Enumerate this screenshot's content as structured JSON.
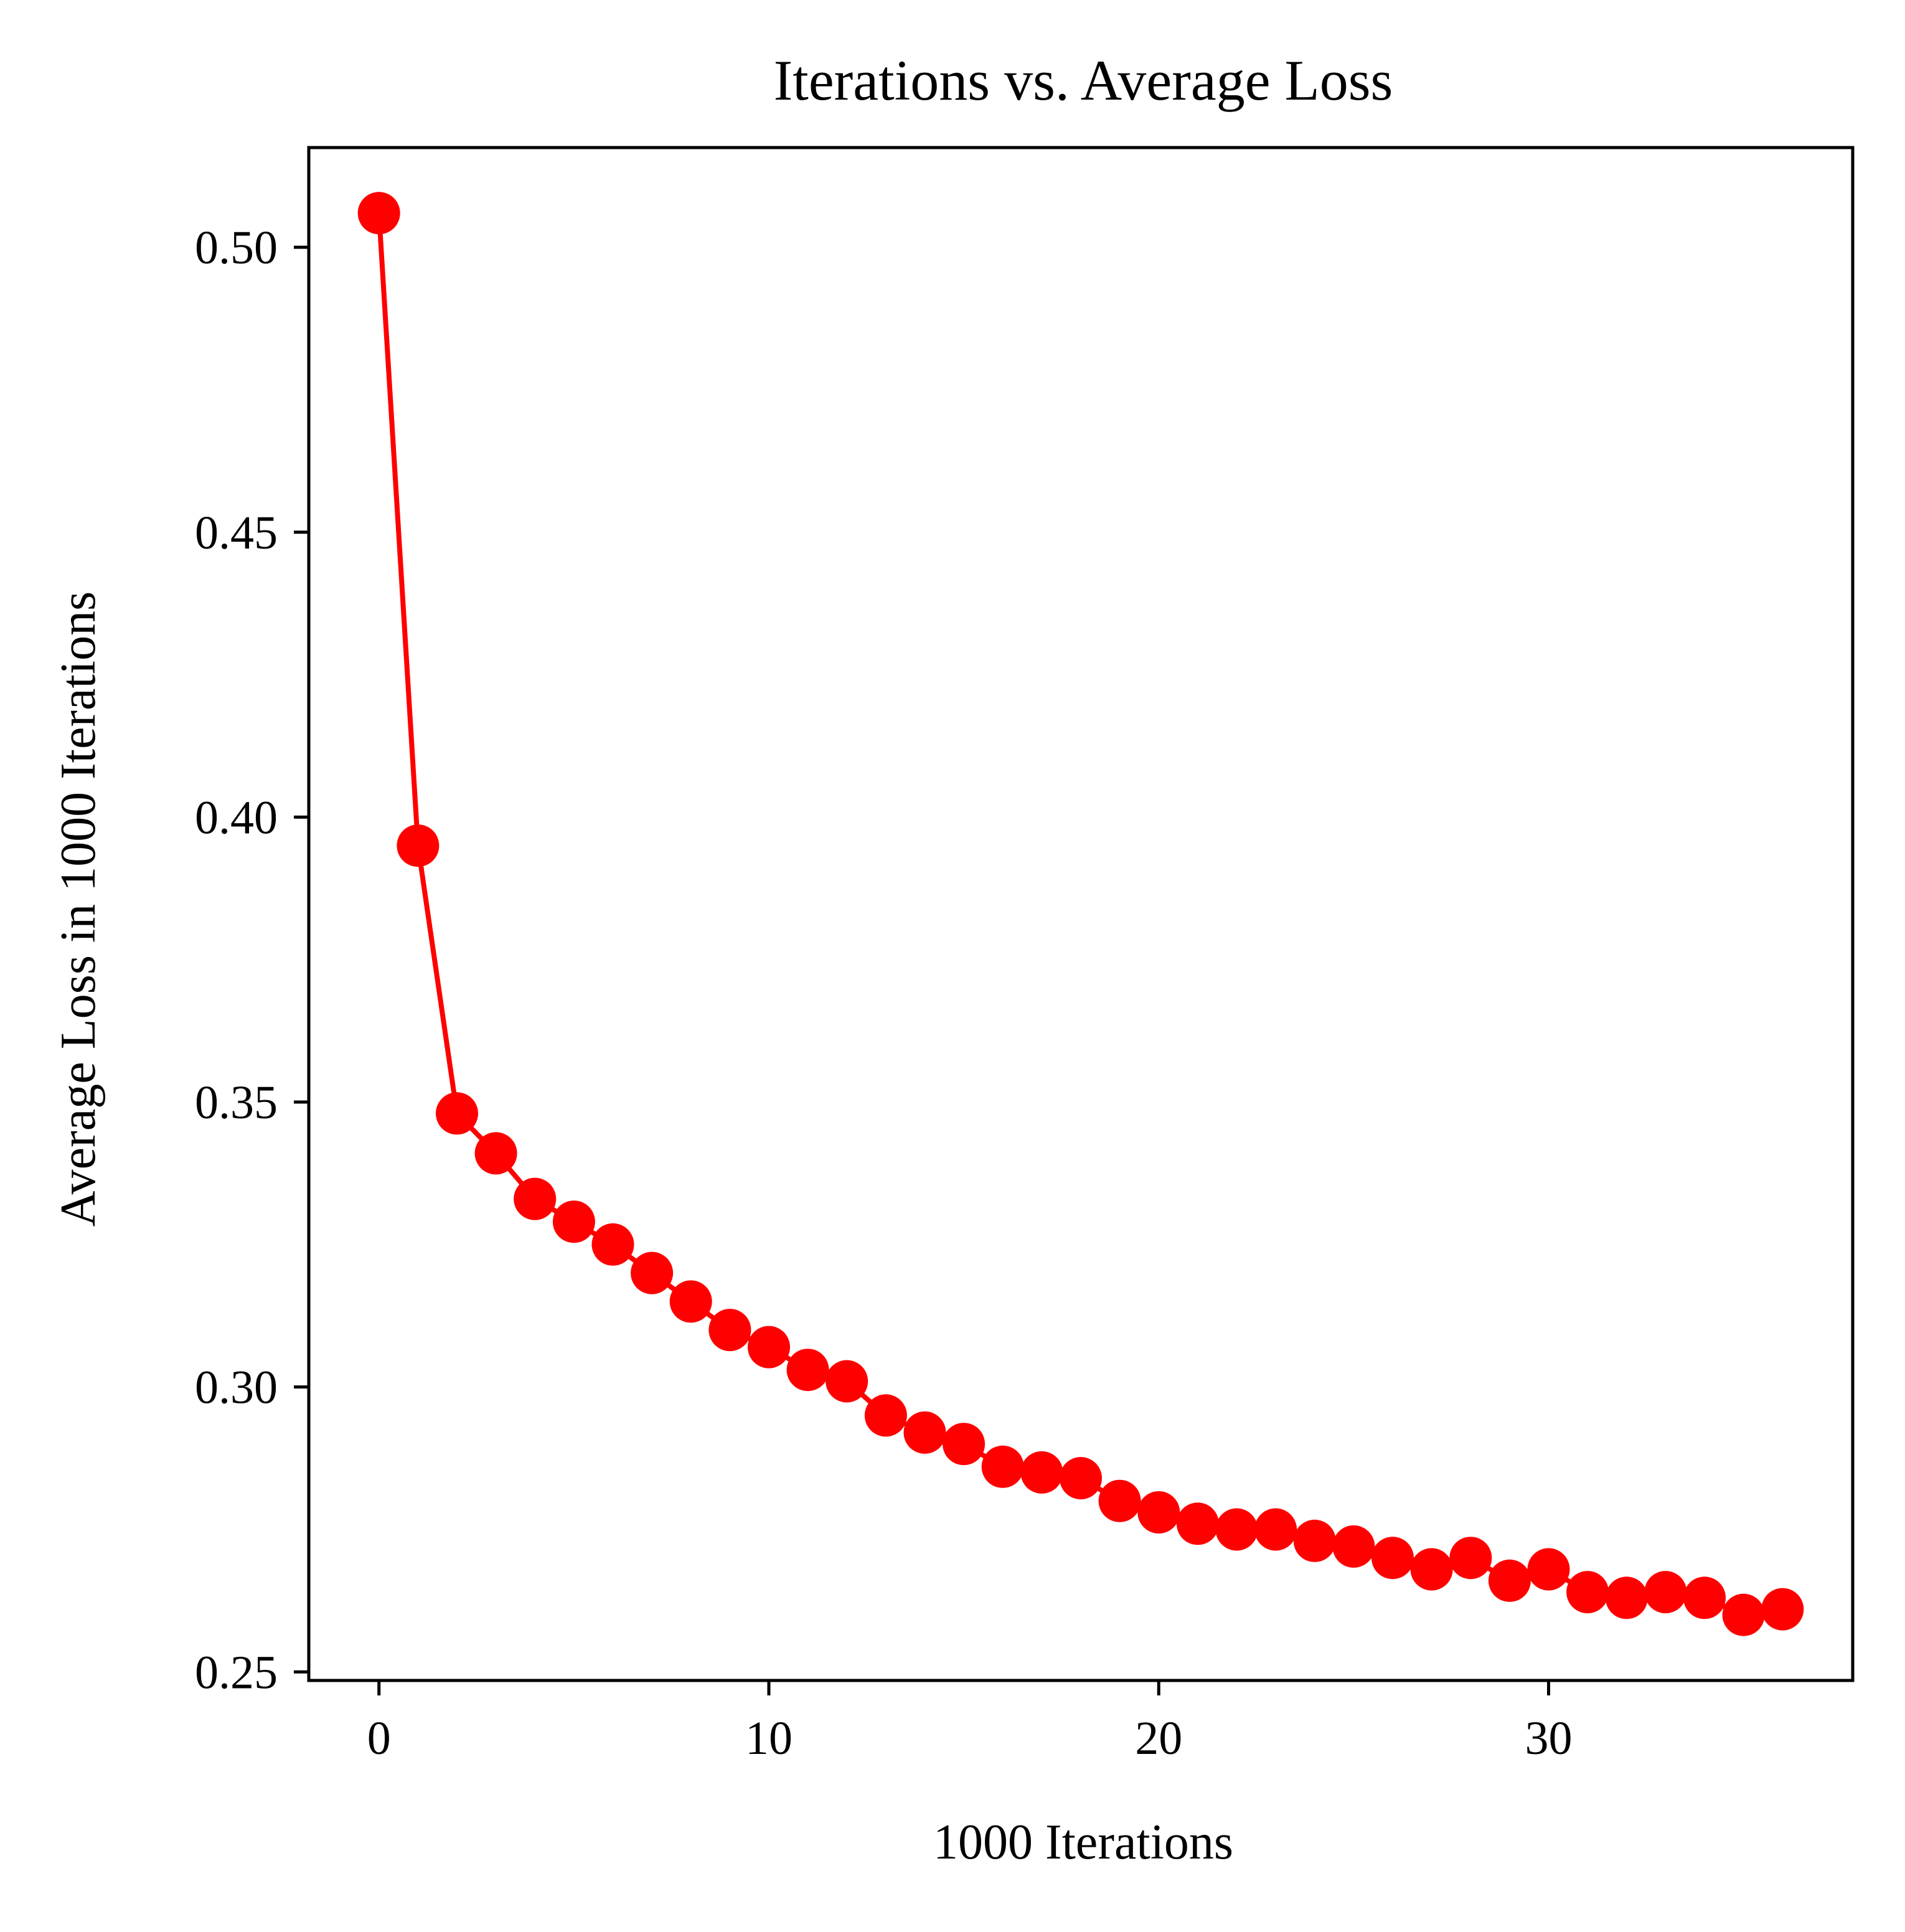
{
  "chart_data": {
    "type": "line",
    "title": "Iterations vs. Average Loss",
    "xlabel": "1000 Iterations",
    "ylabel": "Average Loss in 1000 Iterations",
    "xlim": [
      -1.8,
      37.8
    ],
    "ylim": [
      0.2485,
      0.5175
    ],
    "xticks": [
      0,
      10,
      20,
      30
    ],
    "xtick_labels": [
      "0",
      "10",
      "20",
      "30"
    ],
    "yticks": [
      0.25,
      0.3,
      0.35,
      0.4,
      0.45,
      0.5
    ],
    "ytick_labels": [
      "0.25",
      "0.30",
      "0.35",
      "0.40",
      "0.45",
      "0.50"
    ],
    "grid": false,
    "series": [
      {
        "color": "#ff0000",
        "marker": "circle",
        "x": [
          0,
          1,
          2,
          3,
          4,
          5,
          6,
          7,
          8,
          9,
          10,
          11,
          12,
          13,
          14,
          15,
          16,
          17,
          18,
          19,
          20,
          21,
          22,
          23,
          24,
          25,
          26,
          27,
          28,
          29,
          30,
          31,
          32,
          33,
          34,
          35,
          36
        ],
        "y": [
          0.506,
          0.395,
          0.348,
          0.341,
          0.333,
          0.329,
          0.325,
          0.32,
          0.315,
          0.31,
          0.307,
          0.303,
          0.301,
          0.295,
          0.292,
          0.29,
          0.286,
          0.285,
          0.284,
          0.28,
          0.278,
          0.276,
          0.275,
          0.275,
          0.273,
          0.272,
          0.27,
          0.268,
          0.27,
          0.266,
          0.268,
          0.264,
          0.263,
          0.264,
          0.263,
          0.26,
          0.261
        ]
      }
    ]
  }
}
